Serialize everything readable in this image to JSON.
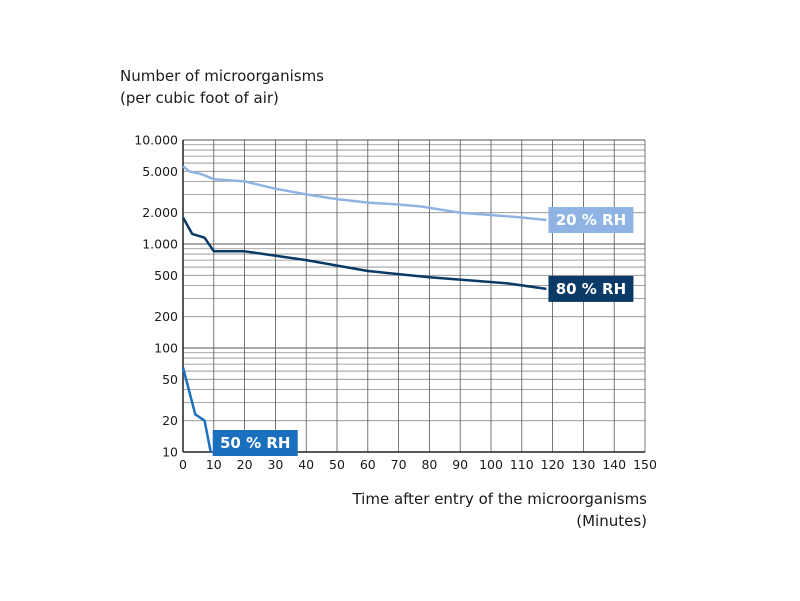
{
  "chart_data": {
    "type": "line",
    "ylabel_line1": "Number of microorganisms",
    "ylabel_line2": "(per cubic foot of air)",
    "xlabel_line1": "Time after entry of the microorganisms",
    "xlabel_line2": "(Minutes)",
    "xlim": [
      0,
      150
    ],
    "ylim": [
      10,
      10000
    ],
    "yscale": "log",
    "grid": true,
    "x_ticks": [
      0,
      10,
      20,
      30,
      40,
      50,
      60,
      70,
      80,
      90,
      100,
      110,
      120,
      130,
      140,
      150
    ],
    "y_ticks": [
      {
        "value": 10000,
        "label": "10.000"
      },
      {
        "value": 5000,
        "label": "5.000"
      },
      {
        "value": 2000,
        "label": "2.000"
      },
      {
        "value": 1000,
        "label": "1.000"
      },
      {
        "value": 500,
        "label": "500"
      },
      {
        "value": 200,
        "label": "200"
      },
      {
        "value": 100,
        "label": "100"
      },
      {
        "value": 50,
        "label": "50"
      },
      {
        "value": 20,
        "label": "20"
      },
      {
        "value": 10,
        "label": "10"
      }
    ],
    "series": [
      {
        "name": "20 % RH",
        "color": "#8fb4e3",
        "x": [
          0,
          2,
          6,
          10,
          20,
          30,
          40,
          50,
          60,
          70,
          77,
          90,
          100,
          110,
          118
        ],
        "y": [
          5600,
          5000,
          4700,
          4200,
          4000,
          3400,
          3000,
          2700,
          2500,
          2400,
          2300,
          2000,
          1900,
          1800,
          1700
        ]
      },
      {
        "name": "80 % RH",
        "color": "#0b3a66",
        "x": [
          0,
          3,
          7,
          10,
          20,
          40,
          60,
          80,
          105,
          118
        ],
        "y": [
          1800,
          1250,
          1150,
          850,
          850,
          700,
          550,
          480,
          420,
          370
        ]
      },
      {
        "name": "50 % RH",
        "color": "#1a6fbf",
        "x": [
          0,
          4,
          7,
          9
        ],
        "y": [
          65,
          23,
          20,
          10
        ]
      }
    ]
  }
}
